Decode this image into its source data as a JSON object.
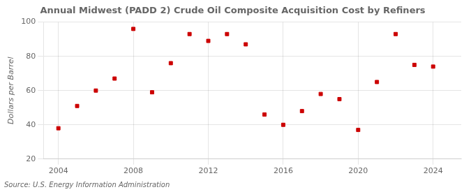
{
  "chart_data": {
    "type": "scatter",
    "title": "Annual Midwest (PADD 2) Crude Oil Composite Acquisition Cost by Refiners",
    "ylabel": "Dollars per Barrel",
    "annotations": [
      "Source: U.S. Energy Information Administration"
    ],
    "x": [
      2004,
      2005,
      2006,
      2007,
      2008,
      2009,
      2010,
      2011,
      2012,
      2013,
      2014,
      2015,
      2016,
      2017,
      2018,
      2019,
      2020,
      2021,
      2022,
      2023,
      2024
    ],
    "values": [
      38,
      51,
      60,
      67,
      96,
      59,
      76,
      93,
      89,
      93,
      87,
      46,
      40,
      48,
      58,
      55,
      37,
      65,
      93,
      75,
      74
    ],
    "color": "#cc0000",
    "marker": "square",
    "xlim": [
      2003.2,
      2025.5
    ],
    "xticks": [
      2004,
      2008,
      2012,
      2016,
      2020,
      2024
    ],
    "ylim": [
      20,
      100
    ],
    "yticks": [
      20,
      40,
      60,
      80,
      100
    ],
    "grid": true
  }
}
